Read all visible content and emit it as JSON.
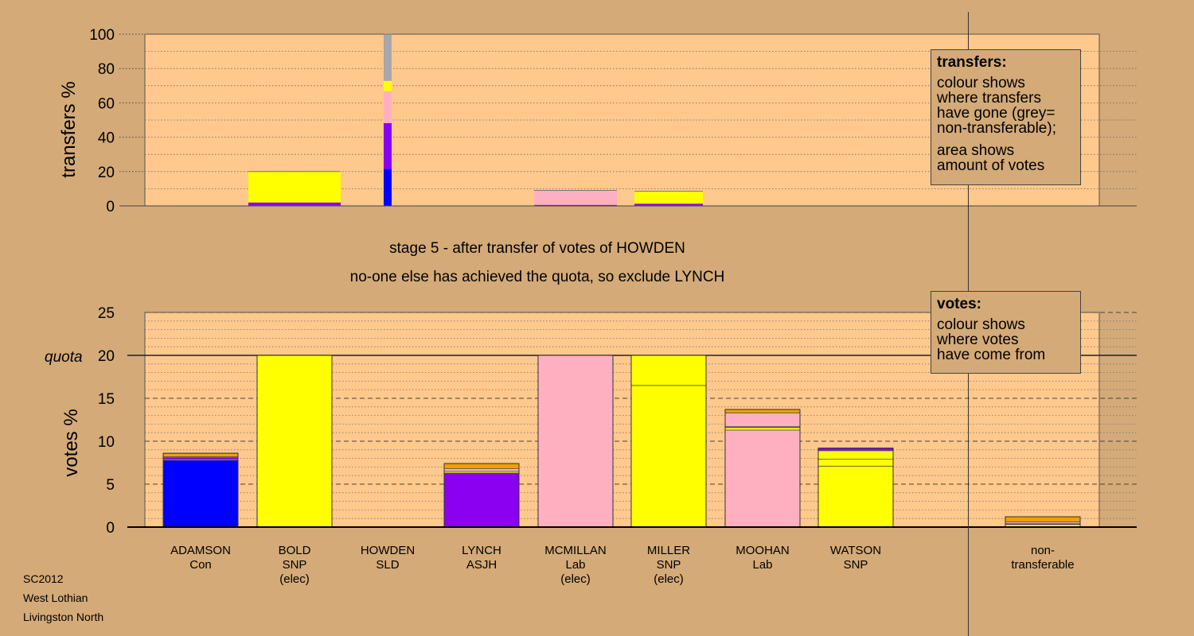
{
  "chart_data": [
    {
      "type": "bar",
      "stacked": true,
      "ylabel": "transfers %",
      "ylim": [
        0,
        100
      ],
      "yticks": [
        0,
        20,
        40,
        60,
        80,
        100
      ],
      "grid": "dotted",
      "categories": [
        "ADAMSON Con",
        "BOLD SNP (elec)",
        "HOWDEN SLD",
        "LYNCH ASJH",
        "MCMILLAN Lab (elec)",
        "MILLER SNP (elec)",
        "MOOHAN Lab",
        "WATSON SNP",
        "",
        "non-transferable"
      ],
      "bars": [
        {
          "category": "BOLD SNP (elec)",
          "segments": [
            {
              "source": "blue",
              "value": 0.3
            },
            {
              "source": "purple",
              "value": 1.7
            },
            {
              "source": "yellow",
              "value": 1.2
            },
            {
              "source": "yellow",
              "value": 12.8
            },
            {
              "source": "yellow",
              "value": 4.0
            }
          ]
        },
        {
          "category": "HOWDEN SLD",
          "segments": [
            {
              "source": "blue",
              "value": 21.5
            },
            {
              "source": "purple",
              "value": 26.7
            },
            {
              "source": "pink",
              "value": 18.6
            },
            {
              "source": "yellow",
              "value": 6.0
            },
            {
              "source": "grey",
              "value": 27.2
            }
          ]
        },
        {
          "category": "MCMILLAN Lab (elec)",
          "segments": [
            {
              "source": "purple",
              "value": 0.6
            },
            {
              "source": "pink",
              "value": 8.4
            }
          ]
        },
        {
          "category": "MILLER SNP (elec)",
          "segments": [
            {
              "source": "blue",
              "value": 0.3
            },
            {
              "source": "purple",
              "value": 1.0
            },
            {
              "source": "yellow",
              "value": 7.2
            }
          ]
        }
      ]
    },
    {
      "type": "bar",
      "stacked": true,
      "ylabel": "votes %",
      "ylim": [
        0,
        25
      ],
      "yticks": [
        0,
        5,
        10,
        15,
        20,
        25
      ],
      "quota": 20,
      "quota_label": "quota",
      "grid": "dashed",
      "categories": [
        "ADAMSON Con",
        "BOLD SNP (elec)",
        "HOWDEN SLD",
        "LYNCH ASJH",
        "MCMILLAN Lab (elec)",
        "MILLER SNP (elec)",
        "MOOHAN Lab",
        "WATSON SNP",
        "",
        "non-transferable"
      ],
      "bars": [
        {
          "category": "ADAMSON Con",
          "segments": [
            {
              "source": "blue",
              "value": 7.8
            },
            {
              "source": "yellow",
              "value": 0.1
            },
            {
              "source": "purple",
              "value": 0.2
            },
            {
              "source": "pink",
              "value": 0.1
            },
            {
              "source": "orange",
              "value": 0.4
            }
          ]
        },
        {
          "category": "BOLD SNP (elec)",
          "segments": [
            {
              "source": "yellow",
              "value": 20.0
            }
          ]
        },
        {
          "category": "HOWDEN SLD",
          "segments": [
            {
              "source": "orange",
              "value": 0.0
            }
          ]
        },
        {
          "category": "LYNCH ASJH",
          "segments": [
            {
              "source": "purple",
              "value": 6.3
            },
            {
              "source": "yellow",
              "value": 0.2
            },
            {
              "source": "pink",
              "value": 0.3
            },
            {
              "source": "orange",
              "value": 0.6
            }
          ]
        },
        {
          "category": "MCMILLAN Lab (elec)",
          "segments": [
            {
              "source": "pink",
              "value": 20.0
            }
          ]
        },
        {
          "category": "MILLER SNP (elec)",
          "segments": [
            {
              "source": "yellow",
              "value": 16.5
            },
            {
              "source": "yellow",
              "value": 3.5
            }
          ]
        },
        {
          "category": "MOOHAN Lab",
          "segments": [
            {
              "source": "pink",
              "value": 11.3
            },
            {
              "source": "yellow",
              "value": 0.3
            },
            {
              "source": "purple",
              "value": 0.1
            },
            {
              "source": "pink",
              "value": 1.6
            },
            {
              "source": "orange",
              "value": 0.4
            }
          ]
        },
        {
          "category": "WATSON SNP",
          "segments": [
            {
              "source": "yellow",
              "value": 7.1
            },
            {
              "source": "yellow",
              "value": 0.8
            },
            {
              "source": "yellow",
              "value": 1.0
            },
            {
              "source": "purple",
              "value": 0.3
            }
          ]
        },
        {
          "category": "non-transferable",
          "segments": [
            {
              "source": "yellow",
              "value": 0.3
            },
            {
              "source": "purple",
              "value": 0.1
            },
            {
              "source": "pink",
              "value": 0.2
            },
            {
              "source": "orange",
              "value": 0.6
            }
          ]
        }
      ]
    }
  ],
  "colors": {
    "blue": "#0000ff",
    "purple": "#8b00f0",
    "pink": "#ffb0c0",
    "yellow": "#ffff00",
    "grey": "#a8a8a8",
    "orange": "#f0a000",
    "panel": "#ffc88c",
    "background": "#d4aa78"
  },
  "candidates": [
    {
      "name": "ADAMSON",
      "party": "Con",
      "status": ""
    },
    {
      "name": "BOLD",
      "party": "SNP",
      "status": "(elec)"
    },
    {
      "name": "HOWDEN",
      "party": "SLD",
      "status": ""
    },
    {
      "name": "LYNCH",
      "party": "ASJH",
      "status": ""
    },
    {
      "name": "MCMILLAN",
      "party": "Lab",
      "status": "(elec)"
    },
    {
      "name": "MILLER",
      "party": "SNP",
      "status": "(elec)"
    },
    {
      "name": "MOOHAN",
      "party": "Lab",
      "status": ""
    },
    {
      "name": "WATSON",
      "party": "SNP",
      "status": ""
    }
  ],
  "nontransferable_label": [
    "non-",
    "transferable"
  ],
  "stage_title": "stage 5 - after transfer of votes of HOWDEN",
  "stage_subtitle": "no-one else has achieved the quota, so exclude LYNCH",
  "legend_transfers": {
    "title": "transfers:",
    "lines1": [
      "colour shows",
      "where transfers",
      "have gone (grey=",
      "non-transferable);"
    ],
    "lines2": [
      "area shows",
      "amount of votes"
    ]
  },
  "legend_votes": {
    "title": "votes:",
    "lines": [
      "colour shows",
      "where votes",
      "have come from"
    ]
  },
  "meta": {
    "election": "SC2012",
    "council": "West Lothian",
    "ward": "Livingston North"
  }
}
